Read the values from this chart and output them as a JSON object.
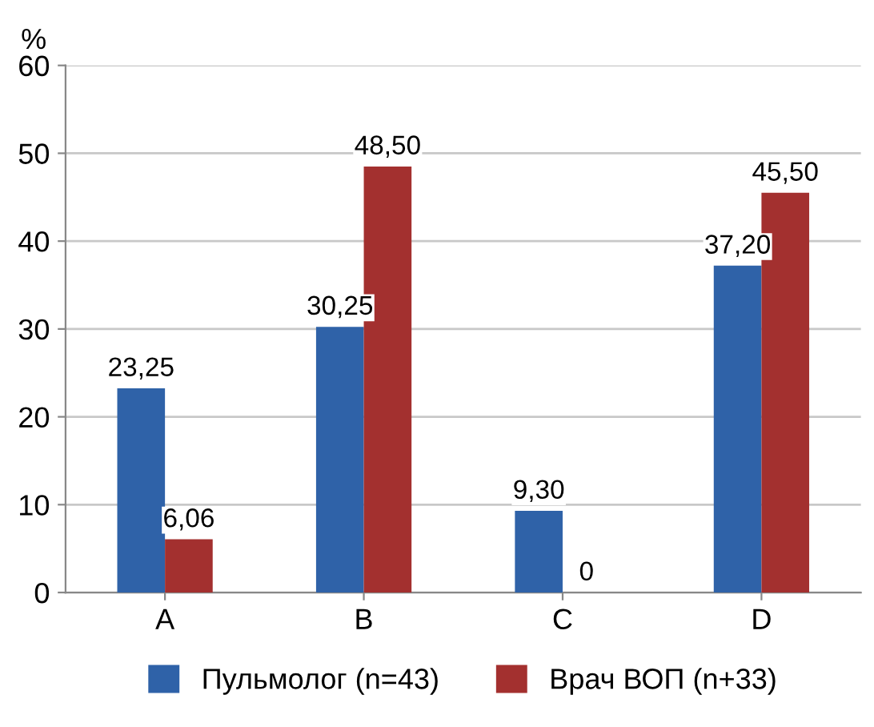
{
  "chart_data": {
    "type": "bar",
    "ylabel": "%",
    "categories": [
      "A",
      "B",
      "C",
      "D"
    ],
    "series": [
      {
        "name": "Пульмолог (n=43)",
        "color": "#2f62a8",
        "values": [
          23.25,
          30.25,
          9.3,
          37.2
        ],
        "value_labels": [
          "23,25",
          "30,25",
          "9,30",
          "37,20"
        ]
      },
      {
        "name": "Врач ВОП (n+33)",
        "color": "#a3302f",
        "values": [
          6.06,
          48.5,
          0,
          45.5
        ],
        "value_labels": [
          "6,06",
          "48,50",
          "0",
          "45,50"
        ]
      }
    ],
    "ylim": [
      0,
      60
    ],
    "yticks": [
      0,
      10,
      20,
      30,
      40,
      50,
      60
    ],
    "grid": "y",
    "legend": "bottom"
  }
}
